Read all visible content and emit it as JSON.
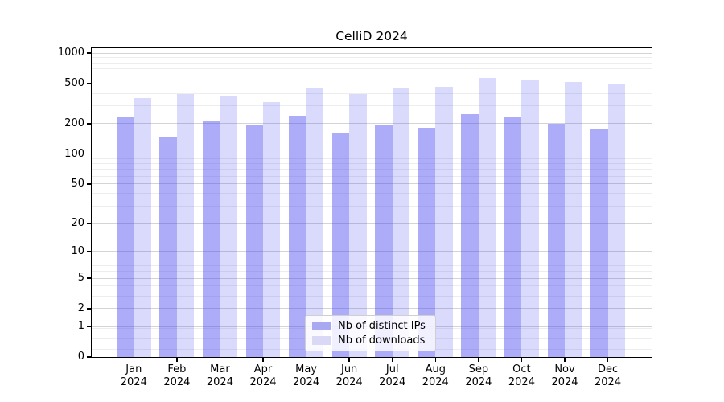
{
  "title": "CelliD 2024",
  "chart_data": {
    "type": "bar",
    "title": "CelliD 2024",
    "categories": [
      "Jan 2024",
      "Feb 2024",
      "Mar 2024",
      "Apr 2024",
      "May 2024",
      "Jun 2024",
      "Jul 2024",
      "Aug 2024",
      "Sep 2024",
      "Oct 2024",
      "Nov 2024",
      "Dec 2024"
    ],
    "series": [
      {
        "name": "Nb of distinct IPs",
        "color": "rgba(70,70,240,0.45)",
        "values": [
          238,
          149,
          217,
          198,
          241,
          161,
          194,
          184,
          248,
          238,
          201,
          176
        ]
      },
      {
        "name": "Nb of downloads",
        "color": "rgba(70,70,240,0.20)",
        "values": [
          363,
          392,
          381,
          331,
          460,
          391,
          446,
          468,
          568,
          545,
          516,
          500
        ]
      }
    ],
    "yscale": "log1p",
    "ylim": [
      0,
      1100
    ],
    "yticks": [
      1000,
      500,
      200,
      100,
      50,
      20,
      10,
      5,
      2,
      1,
      0
    ],
    "y_tick_labels": [
      "1000",
      "500",
      "200",
      "100",
      "50",
      "20",
      "10",
      "5",
      "2",
      "1",
      "0"
    ],
    "y_minor_gridlines": [
      900,
      800,
      700,
      600,
      400,
      300,
      90,
      80,
      70,
      60,
      40,
      30,
      9,
      8,
      7,
      6,
      4,
      3,
      0.9,
      0.5,
      0.2
    ],
    "grid": true,
    "legend_position": "lower center"
  },
  "axis": {
    "x_months": [
      "Jan",
      "Feb",
      "Mar",
      "Apr",
      "May",
      "Jun",
      "Jul",
      "Aug",
      "Sep",
      "Oct",
      "Nov",
      "Dec"
    ],
    "x_year_line": "2024"
  },
  "legend": {
    "items": [
      {
        "label": "Nb of distinct IPs",
        "color": "#a9a9f2"
      },
      {
        "label": "Nb of downloads",
        "color": "#d9d9f6"
      }
    ]
  }
}
